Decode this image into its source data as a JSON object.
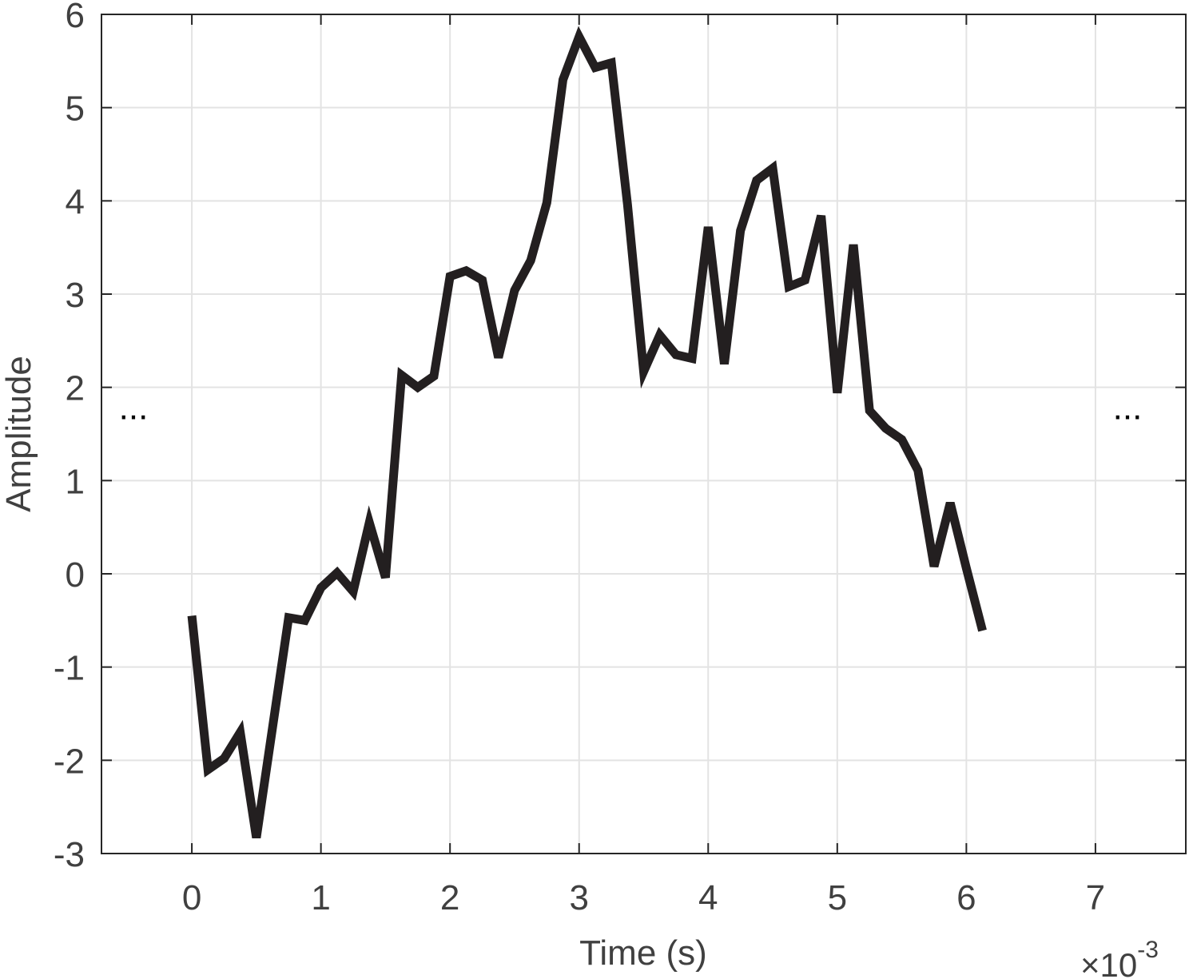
{
  "chart_data": {
    "type": "line",
    "title": "",
    "xlabel": "Time (s)",
    "ylabel": "Amplitude",
    "x_exponent_label": "×10",
    "x_exponent_power": "-3",
    "xlim": [
      -0.7,
      7.7
    ],
    "ylim": [
      -3,
      6
    ],
    "xticks": [
      0,
      1,
      2,
      3,
      4,
      5,
      6,
      7
    ],
    "xtick_labels": [
      "0",
      "1",
      "2",
      "3",
      "4",
      "5",
      "6",
      "7"
    ],
    "yticks": [
      -3,
      -2,
      -1,
      0,
      1,
      2,
      3,
      4,
      5,
      6
    ],
    "ytick_labels": [
      "-3",
      "-2",
      "-1",
      "0",
      "1",
      "2",
      "3",
      "4",
      "5",
      "6"
    ],
    "grid": true,
    "ellipsis_left": "...",
    "ellipsis_right": "...",
    "ellipsis_y": 1.66,
    "line_color": "#231f20",
    "series": [
      {
        "values_x": [
          0.0,
          0.125,
          0.25,
          0.375,
          0.5,
          0.625,
          0.75,
          0.875,
          1.0,
          1.125,
          1.25,
          1.375,
          1.5,
          1.625,
          1.75,
          1.875,
          2.0,
          2.125,
          2.25,
          2.375,
          2.5,
          2.625,
          2.75,
          2.875,
          3.0,
          3.125,
          3.25,
          3.375,
          3.5,
          3.625,
          3.75,
          3.875,
          4.0,
          4.125,
          4.25,
          4.375,
          4.5,
          4.625,
          4.75,
          4.875,
          5.0,
          5.125,
          5.25,
          5.375,
          5.5,
          5.625,
          5.75,
          5.875,
          6.0,
          6.125
        ],
        "values_y": [
          -0.45,
          -2.1,
          -1.98,
          -1.7,
          -2.83,
          -1.65,
          -0.47,
          -0.5,
          -0.15,
          0.01,
          -0.19,
          0.55,
          -0.04,
          2.13,
          2.0,
          2.12,
          3.19,
          3.25,
          3.15,
          2.32,
          3.04,
          3.36,
          3.98,
          5.3,
          5.76,
          5.43,
          5.48,
          3.96,
          2.17,
          2.56,
          2.35,
          2.31,
          3.72,
          2.25,
          3.68,
          4.22,
          4.35,
          3.08,
          3.15,
          3.84,
          1.94,
          3.53,
          1.75,
          1.56,
          1.44,
          1.11,
          0.08,
          0.76,
          0.06,
          -0.61
        ]
      }
    ]
  }
}
